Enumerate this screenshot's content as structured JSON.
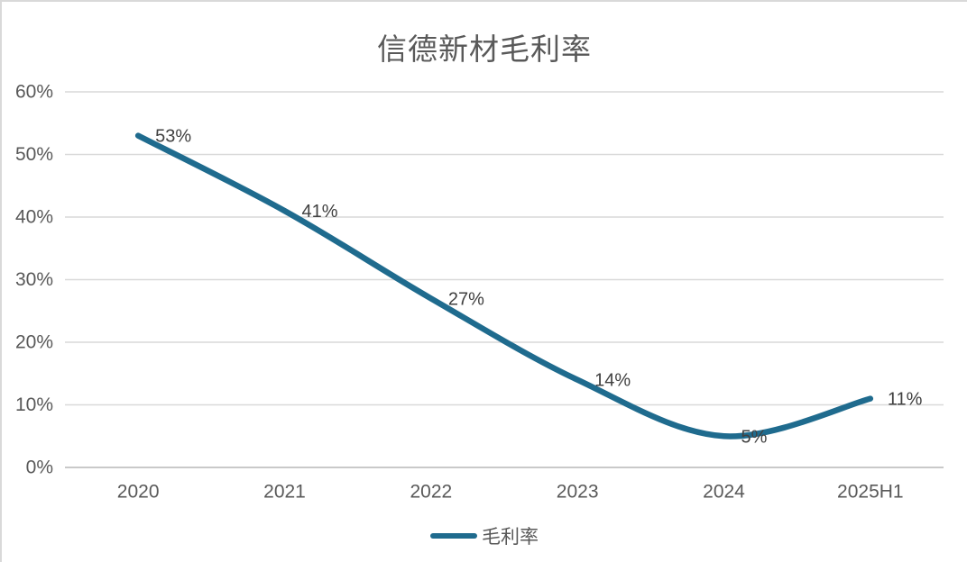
{
  "title": "信德新材毛利率",
  "chart_data": {
    "type": "line",
    "title": "信德新材毛利率",
    "categories": [
      "2020",
      "2021",
      "2022",
      "2023",
      "2024",
      "2025H1"
    ],
    "series": [
      {
        "name": "毛利率",
        "values": [
          53,
          41,
          27,
          14,
          5,
          11
        ]
      }
    ],
    "data_labels": [
      "53%",
      "41%",
      "27%",
      "14%",
      "5%",
      "11%"
    ],
    "xlabel": "",
    "ylabel": "",
    "ylim": [
      0,
      60
    ],
    "y_ticks": {
      "values": [
        0,
        10,
        20,
        30,
        40,
        50,
        60
      ],
      "labels": [
        "0%",
        "10%",
        "20%",
        "30%",
        "40%",
        "50%",
        "60%"
      ]
    },
    "grid": true,
    "smoothed": true,
    "legend_position": "bottom",
    "line_color": "#1F6B8E"
  },
  "legend": {
    "items": [
      {
        "label": "毛利率",
        "color": "#1F6B8E"
      }
    ]
  },
  "colors": {
    "line": "#1F6B8E",
    "gridline": "#D9D9D9",
    "axis_line": "#C9C9C9",
    "axis_text": "#595959",
    "data_label_text": "#404040",
    "title_text": "#595959",
    "frame_border": "#D9D9D9"
  }
}
